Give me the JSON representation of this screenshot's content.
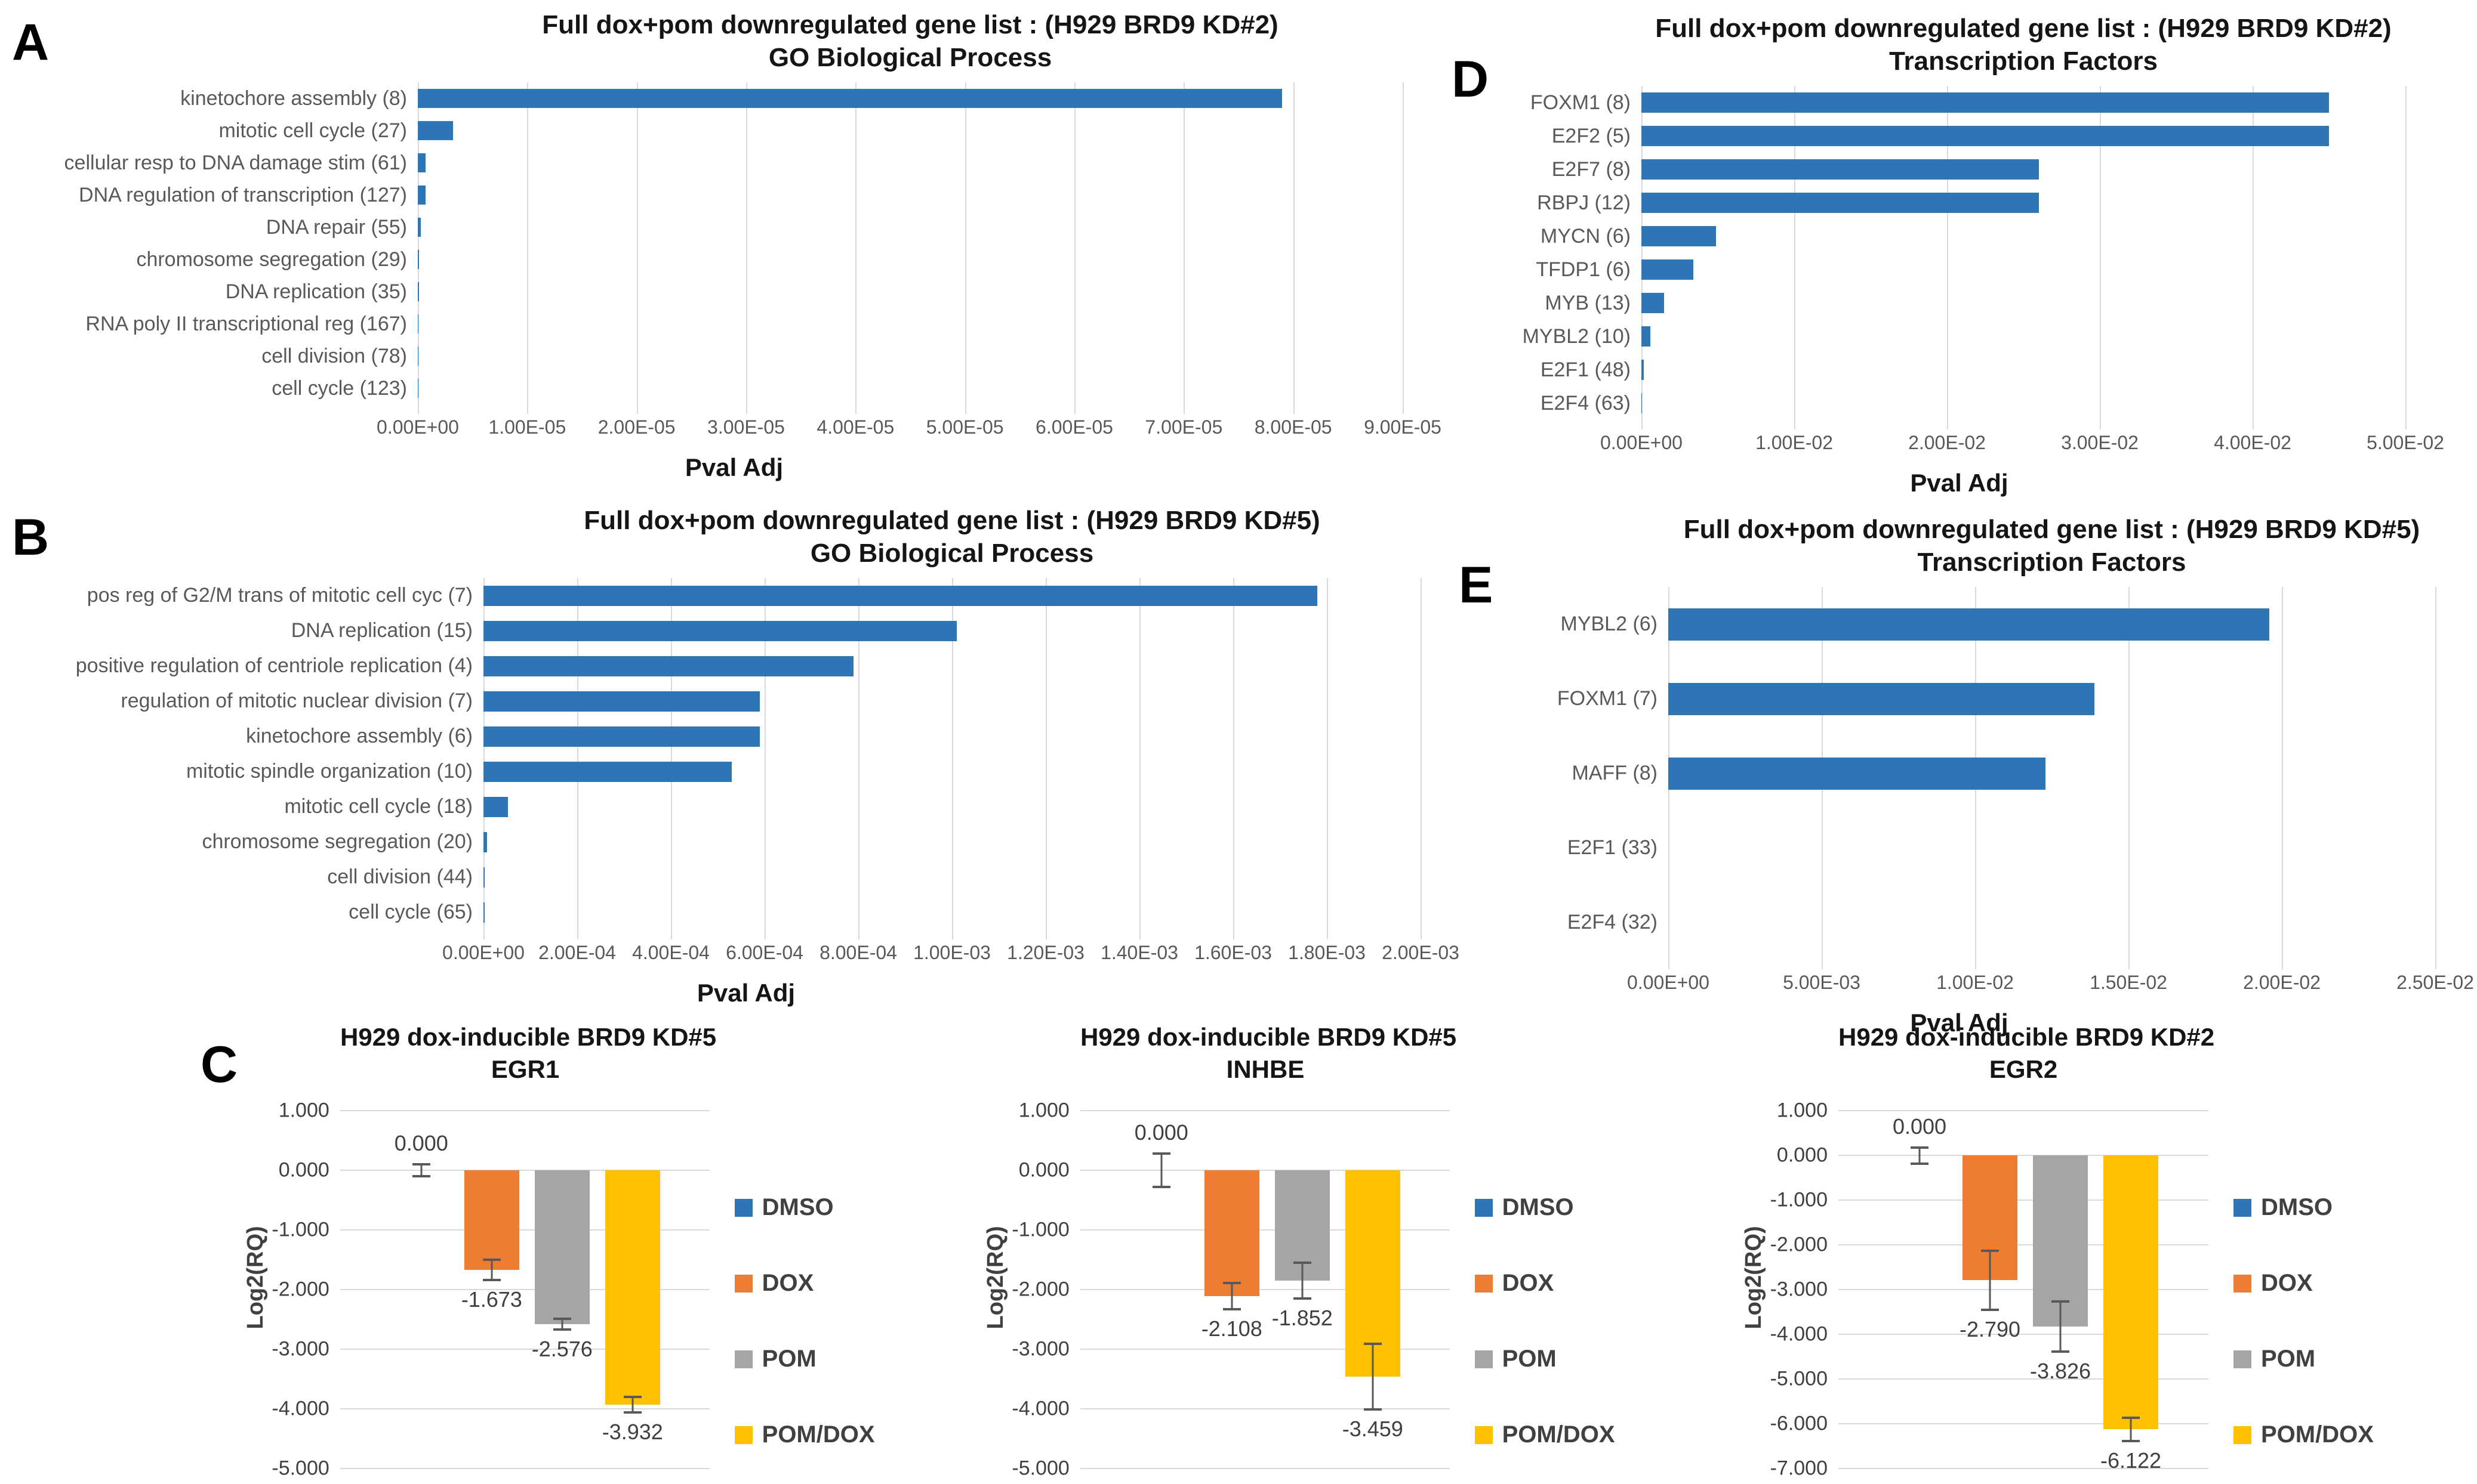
{
  "colors": {
    "bar_blue": "#2E75B6",
    "dox_orange": "#ED7D31",
    "pom_gray": "#A5A5A5",
    "pomdox_yellow": "#FFC000",
    "gridline": "#D9D9D9",
    "axis_text": "#595959",
    "value_text": "#404040",
    "title_text": "#151515"
  },
  "panel_labels": {
    "a": "A",
    "b": "B",
    "c": "C",
    "d": "D",
    "e": "E"
  },
  "chart_data": [
    {
      "panel": "A",
      "type": "bar",
      "orientation": "horizontal",
      "title_line1": "Full dox+pom downregulated gene list : (H929 BRD9 KD#2)",
      "title_line2": "GO Biological Process",
      "xlabel": "Pval Adj",
      "categories": [
        "kinetochore assembly (8)",
        "mitotic cell cycle (27)",
        "cellular resp to DNA damage stim (61)",
        "DNA regulation of transcription (127)",
        "DNA repair (55)",
        "chromosome segregation (29)",
        "DNA replication (35)",
        "RNA poly II transcriptional reg (167)",
        "cell division (78)",
        "cell cycle (123)"
      ],
      "values": [
        7.9e-05,
        3.2e-06,
        7e-07,
        7e-07,
        3e-07,
        1.2e-07,
        1e-07,
        6e-08,
        4e-08,
        3e-08
      ],
      "xlim": [
        0,
        9e-05
      ],
      "x_ticks": [
        "0.00E+00",
        "1.00E-05",
        "2.00E-05",
        "3.00E-05",
        "4.00E-05",
        "5.00E-05",
        "6.00E-05",
        "7.00E-05",
        "8.00E-05",
        "9.00E-05"
      ],
      "bar_color": "#2E75B6",
      "grid": true,
      "legend_position": "none"
    },
    {
      "panel": "B",
      "type": "bar",
      "orientation": "horizontal",
      "title_line1": "Full dox+pom downregulated gene list : (H929 BRD9 KD#5)",
      "title_line2": "GO Biological Process",
      "xlabel": "Pval Adj",
      "categories": [
        "pos reg of G2/M trans of mitotic cell cyc (7)",
        "DNA replication (15)",
        "positive regulation of centriole replication (4)",
        "regulation of mitotic nuclear division (7)",
        "kinetochore assembly (6)",
        "mitotic spindle organization (10)",
        "mitotic cell cycle (18)",
        "chromosome segregation (20)",
        "cell division (44)",
        "cell cycle (65)"
      ],
      "values": [
        0.00178,
        0.00101,
        0.00079,
        0.00059,
        0.00059,
        0.00053,
        5.2e-05,
        8e-06,
        3e-06,
        2e-06
      ],
      "xlim": [
        0,
        0.002
      ],
      "x_ticks": [
        "0.00E+00",
        "2.00E-04",
        "4.00E-04",
        "6.00E-04",
        "8.00E-04",
        "1.00E-03",
        "1.20E-03",
        "1.40E-03",
        "1.60E-03",
        "1.80E-03",
        "2.00E-03"
      ],
      "bar_color": "#2E75B6",
      "grid": true,
      "legend_position": "none"
    },
    {
      "panel": "D",
      "type": "bar",
      "orientation": "horizontal",
      "title_line1": "Full dox+pom downregulated gene list : (H929 BRD9 KD#2)",
      "title_line2": "Transcription Factors",
      "xlabel": "Pval Adj",
      "categories": [
        "FOXM1 (8)",
        "E2F2 (5)",
        "E2F7 (8)",
        "RBPJ (12)",
        "MYCN (6)",
        "TFDP1 (6)",
        "MYB (13)",
        "MYBL2 (10)",
        "E2F1 (48)",
        "E2F4 (63)"
      ],
      "values": [
        0.045,
        0.045,
        0.026,
        0.026,
        0.0049,
        0.0034,
        0.0015,
        0.00057,
        0.00015,
        3e-05
      ],
      "xlim": [
        0,
        0.05
      ],
      "x_ticks": [
        "0.00E+00",
        "1.00E-02",
        "2.00E-02",
        "3.00E-02",
        "4.00E-02",
        "5.00E-02"
      ],
      "bar_color": "#2E75B6",
      "grid": true,
      "legend_position": "none"
    },
    {
      "panel": "E",
      "type": "bar",
      "orientation": "horizontal",
      "title_line1": "Full dox+pom downregulated gene list : (H929 BRD9 KD#5)",
      "title_line2": "Transcription Factors",
      "xlabel": "Pval Adj",
      "categories": [
        "MYBL2 (6)",
        "FOXM1 (7)",
        "MAFF (8)",
        "E2F1 (33)",
        "E2F4 (32)"
      ],
      "values": [
        0.0196,
        0.0139,
        0.0123,
        0,
        0
      ],
      "xlim": [
        0,
        0.025
      ],
      "x_ticks": [
        "0.00E+00",
        "5.00E-03",
        "1.00E-02",
        "1.50E-02",
        "2.00E-02",
        "2.50E-02"
      ],
      "bar_color": "#2E75B6",
      "grid": true,
      "legend_position": "none"
    },
    {
      "panel": "C1",
      "type": "bar",
      "orientation": "vertical",
      "title_line1": "H929 dox-inducible BRD9 KD#5",
      "title_line2": "EGR1",
      "ylabel": "Log2(RQ)",
      "categories": [
        "DMSO",
        "DOX",
        "POM",
        "POM/DOX"
      ],
      "values": [
        0,
        -1.673,
        -2.576,
        -3.932
      ],
      "errors": [
        0.1,
        0.17,
        0.09,
        0.13
      ],
      "value_labels": [
        "0.000",
        "-1.673",
        "-2.576",
        "-3.932"
      ],
      "ylim": [
        -5,
        1
      ],
      "y_ticks": [
        "1.000",
        "0.000",
        "-1.000",
        "-2.000",
        "-3.000",
        "-4.000",
        "-5.000"
      ],
      "series_colors": [
        "#2E75B6",
        "#ED7D31",
        "#A5A5A5",
        "#FFC000"
      ],
      "legend": [
        "DMSO",
        "DOX",
        "POM",
        "POM/DOX"
      ],
      "legend_position": "right",
      "grid": true
    },
    {
      "panel": "C2",
      "type": "bar",
      "orientation": "vertical",
      "title_line1": "H929 dox-inducible BRD9 KD#5",
      "title_line2": "INHBE",
      "ylabel": "Log2(RQ)",
      "categories": [
        "DMSO",
        "DOX",
        "POM",
        "POM/DOX"
      ],
      "values": [
        0,
        -2.108,
        -1.852,
        -3.459
      ],
      "errors": [
        0.28,
        0.22,
        0.3,
        0.55
      ],
      "value_labels": [
        "0.000",
        "-2.108",
        "-1.852",
        "-3.459"
      ],
      "ylim": [
        -5,
        1
      ],
      "y_ticks": [
        "1.000",
        "0.000",
        "-1.000",
        "-2.000",
        "-3.000",
        "-4.000",
        "-5.000"
      ],
      "series_colors": [
        "#2E75B6",
        "#ED7D31",
        "#A5A5A5",
        "#FFC000"
      ],
      "legend": [
        "DMSO",
        "DOX",
        "POM",
        "POM/DOX"
      ],
      "legend_position": "right",
      "grid": true
    },
    {
      "panel": "C3",
      "type": "bar",
      "orientation": "vertical",
      "title_line1": "H929 dox-inducible BRD9 KD#2",
      "title_line2": "EGR2",
      "ylabel": "Log2(RQ)",
      "categories": [
        "DMSO",
        "DOX",
        "POM",
        "POM/DOX"
      ],
      "values": [
        0,
        -2.79,
        -3.826,
        -6.122
      ],
      "errors": [
        0.18,
        0.66,
        0.56,
        0.26
      ],
      "value_labels": [
        "0.000",
        "-2.790",
        "-3.826",
        "-6.122"
      ],
      "ylim": [
        -7,
        1
      ],
      "y_ticks": [
        "1.000",
        "0.000",
        "-1.000",
        "-2.000",
        "-3.000",
        "-4.000",
        "-5.000",
        "-6.000",
        "-7.000"
      ],
      "series_colors": [
        "#2E75B6",
        "#ED7D31",
        "#A5A5A5",
        "#FFC000"
      ],
      "legend": [
        "DMSO",
        "DOX",
        "POM",
        "POM/DOX"
      ],
      "legend_position": "right",
      "grid": true
    }
  ]
}
